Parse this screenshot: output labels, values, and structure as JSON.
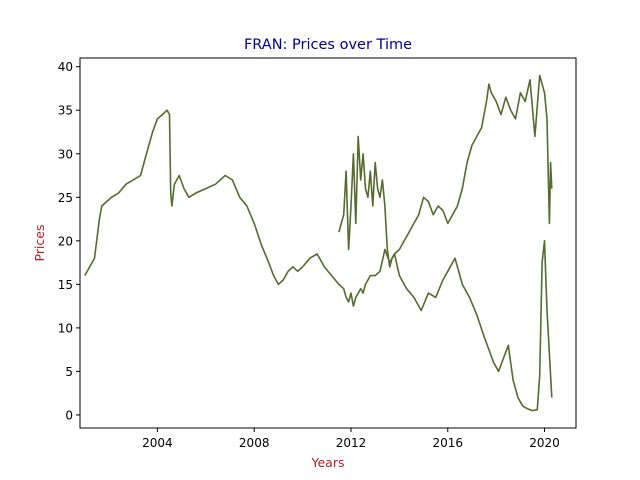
{
  "chart_data": {
    "type": "line",
    "title": "FRAN: Prices over Time",
    "xlabel": "Years",
    "ylabel": "Prices",
    "xlim": [
      2000.8,
      2021.3
    ],
    "ylim": [
      -1.5,
      41.0
    ],
    "xticks": [
      2004,
      2008,
      2012,
      2016,
      2020
    ],
    "yticks": [
      0,
      5,
      10,
      15,
      20,
      25,
      30,
      35,
      40
    ],
    "grid": false,
    "legend": "none",
    "colors": {
      "line": "#556b2f",
      "title": "#00008b",
      "axis_label": "#b22222"
    },
    "series": [
      {
        "values_x": [
          2001.0,
          2001.2,
          2001.4,
          2001.6,
          2001.7,
          2001.9,
          2002.1,
          2002.4,
          2002.7,
          2003.0,
          2003.3,
          2003.6,
          2003.8,
          2004.0,
          2004.2,
          2004.4,
          2004.5,
          2004.55,
          2004.6,
          2004.7,
          2004.9,
          2005.1,
          2005.3,
          2005.6,
          2006.0,
          2006.4,
          2006.8,
          2007.1,
          2007.4,
          2007.7,
          2008.0,
          2008.3,
          2008.6,
          2008.8,
          2009.0,
          2009.2,
          2009.4,
          2009.6,
          2009.8,
          2010.0,
          2010.3,
          2010.6,
          2010.9,
          2011.2,
          2011.5,
          2011.7,
          2011.8,
          2011.9,
          2012.0,
          2012.1,
          2012.2,
          2012.3,
          2012.4,
          2012.5,
          2012.6,
          2012.7,
          2012.8,
          2013.0,
          2013.2,
          2013.4,
          2013.6,
          2013.8,
          2014.0,
          2014.3,
          2014.6,
          2014.9,
          2015.2,
          2015.5,
          2015.8,
          2016.0,
          2016.3,
          2016.6,
          2016.9,
          2017.2,
          2017.5,
          2017.7,
          2017.9,
          2018.1,
          2018.3,
          2018.5,
          2018.7,
          2018.9,
          2019.1,
          2019.3,
          2019.5,
          2019.7,
          2019.8,
          2019.9,
          2020.0,
          2020.1,
          2020.2,
          2020.3
        ],
        "values_y": [
          16.0,
          17.0,
          18.0,
          22.5,
          24.0,
          24.5,
          25.0,
          25.5,
          26.5,
          27.0,
          27.5,
          30.5,
          32.5,
          34.0,
          34.5,
          35.0,
          34.5,
          25.5,
          24.0,
          26.5,
          27.5,
          26.0,
          25.0,
          25.5,
          26.0,
          26.5,
          27.5,
          27.0,
          25.0,
          24.0,
          22.0,
          19.5,
          17.5,
          16.0,
          15.0,
          15.5,
          16.5,
          17.0,
          16.5,
          17.0,
          18.0,
          18.5,
          17.0,
          16.0,
          15.0,
          14.5,
          13.5,
          13.0,
          14.0,
          12.5,
          13.5,
          14.0,
          14.5,
          14.0,
          15.0,
          15.5,
          16.0,
          16.0,
          16.5,
          19.0,
          17.5,
          18.5,
          16.0,
          14.5,
          13.5,
          12.0,
          14.0,
          13.5,
          15.5,
          16.5,
          18.0,
          15.0,
          13.5,
          11.5,
          9.0,
          7.5,
          6.0,
          5.0,
          6.5,
          8.0,
          4.0,
          2.0,
          1.0,
          0.7,
          0.5,
          0.6,
          4.5,
          17.5,
          20.0,
          12.0,
          7.0,
          2.0
        ]
      },
      {
        "values_x": [
          2011.5,
          2011.7,
          2011.8,
          2011.9,
          2012.0,
          2012.1,
          2012.2,
          2012.3,
          2012.4,
          2012.5,
          2012.6,
          2012.7,
          2012.8,
          2012.9,
          2013.0,
          2013.1,
          2013.2,
          2013.3,
          2013.4,
          2013.5,
          2013.6,
          2013.7,
          2013.8,
          2014.0,
          2014.2,
          2014.4,
          2014.6,
          2014.8,
          2015.0,
          2015.2,
          2015.4,
          2015.6,
          2015.8,
          2016.0,
          2016.2,
          2016.4,
          2016.6,
          2016.8,
          2017.0,
          2017.2,
          2017.4,
          2017.6,
          2017.7,
          2017.8,
          2018.0,
          2018.2,
          2018.4,
          2018.6,
          2018.8,
          2019.0,
          2019.2,
          2019.4,
          2019.6,
          2019.8,
          2020.0,
          2020.1,
          2020.2,
          2020.25,
          2020.3
        ],
        "values_y": [
          21.0,
          23.0,
          28.0,
          19.0,
          24.0,
          30.0,
          22.0,
          32.0,
          27.0,
          30.0,
          26.0,
          25.0,
          28.0,
          24.0,
          29.0,
          26.0,
          25.0,
          27.0,
          24.0,
          19.0,
          17.0,
          18.0,
          18.5,
          19.0,
          20.0,
          21.0,
          22.0,
          23.0,
          25.0,
          24.5,
          23.0,
          24.0,
          23.5,
          22.0,
          23.0,
          24.0,
          26.0,
          29.0,
          31.0,
          32.0,
          33.0,
          36.0,
          38.0,
          37.0,
          36.0,
          34.5,
          36.5,
          35.0,
          34.0,
          37.0,
          36.0,
          38.5,
          32.0,
          39.0,
          37.0,
          34.0,
          22.0,
          29.0,
          26.0
        ]
      }
    ]
  }
}
